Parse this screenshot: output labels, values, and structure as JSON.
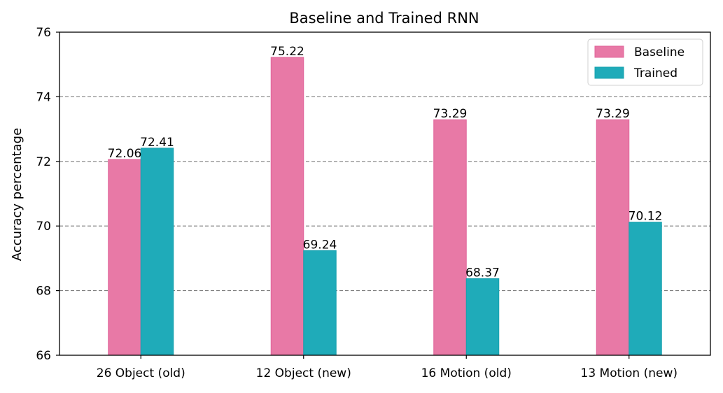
{
  "chart_data": {
    "type": "bar",
    "title": "Baseline and Trained RNN",
    "xlabel": "",
    "ylabel": "Accuracy percentage",
    "ylim": [
      66,
      76
    ],
    "yticks": [
      66,
      68,
      70,
      72,
      74,
      76
    ],
    "grid": "horizontal dashed",
    "legend_position": "top-right",
    "categories": [
      "26 Object (old)",
      "12 Object (new)",
      "16 Motion (old)",
      "13 Motion (new)"
    ],
    "series": [
      {
        "name": "Baseline",
        "color": "#e879a6",
        "edge": "#e0649a",
        "values": [
          72.06,
          75.22,
          73.29,
          73.29
        ],
        "labels": [
          "72.06",
          "75.22",
          "73.29",
          "73.29"
        ]
      },
      {
        "name": "Trained",
        "color": "#1fabb9",
        "edge": "#17a0ae",
        "values": [
          72.41,
          69.24,
          68.37,
          70.12
        ],
        "labels": [
          "72.41",
          "69.24",
          "68.37",
          "70.12"
        ]
      }
    ]
  }
}
